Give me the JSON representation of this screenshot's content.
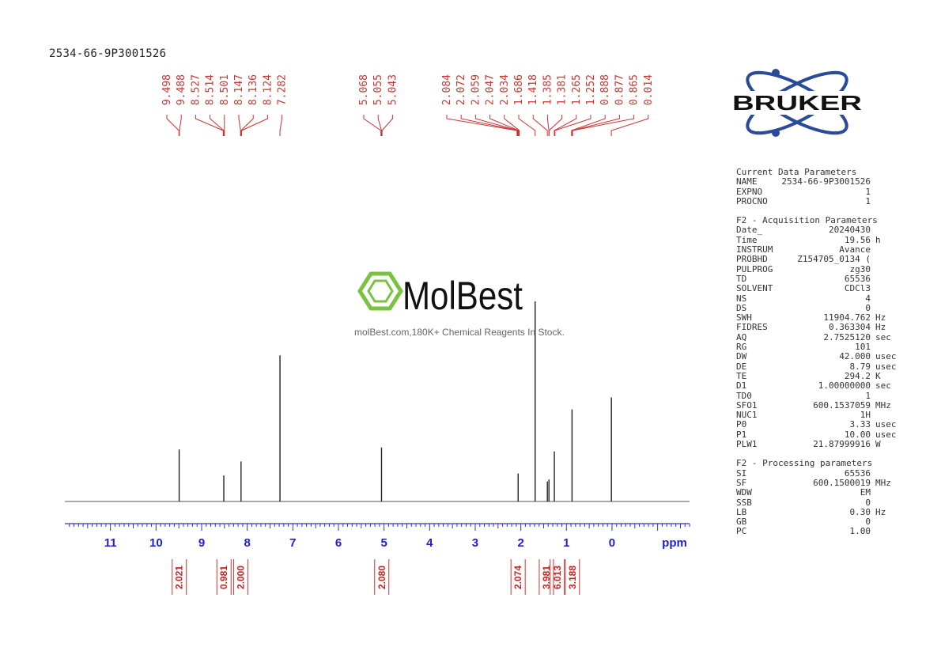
{
  "sample_title": "2534-66-9P3001526",
  "watermark": {
    "brand": "MolBest",
    "tagline": "molBest.com,180K+ Chemical Reagents In Stock."
  },
  "logo": {
    "text": "BRUKER"
  },
  "chart_data": {
    "type": "nmr-spectrum",
    "xlabel": "ppm",
    "xlim": [
      12.0,
      -1.7
    ],
    "x_ticks": [
      11,
      10,
      9,
      8,
      7,
      6,
      5,
      4,
      3,
      2,
      1,
      0
    ],
    "peak_labels": [
      "9.498",
      "9.488",
      "8.527",
      "8.514",
      "8.501",
      "8.147",
      "8.136",
      "8.124",
      "7.282",
      "5.068",
      "5.055",
      "5.043",
      "2.084",
      "2.072",
      "2.059",
      "2.047",
      "2.034",
      "1.686",
      "1.418",
      "1.385",
      "1.381",
      "1.265",
      "1.252",
      "0.888",
      "0.877",
      "0.865",
      "0.014"
    ],
    "peaks": [
      {
        "ppm": 9.493,
        "height": 0.26
      },
      {
        "ppm": 8.514,
        "height": 0.13
      },
      {
        "ppm": 8.136,
        "height": 0.2
      },
      {
        "ppm": 7.282,
        "height": 0.73
      },
      {
        "ppm": 5.055,
        "height": 0.27
      },
      {
        "ppm": 2.059,
        "height": 0.14
      },
      {
        "ppm": 1.686,
        "height": 1.0
      },
      {
        "ppm": 1.418,
        "height": 0.1
      },
      {
        "ppm": 1.383,
        "height": 0.11
      },
      {
        "ppm": 1.265,
        "height": 0.25
      },
      {
        "ppm": 0.877,
        "height": 0.46
      },
      {
        "ppm": 0.014,
        "height": 0.52
      }
    ],
    "integrals": [
      {
        "ppm": 9.49,
        "value": "2.021"
      },
      {
        "ppm": 8.51,
        "value": "0.981"
      },
      {
        "ppm": 8.14,
        "value": "2.000"
      },
      {
        "ppm": 5.05,
        "value": "2.080"
      },
      {
        "ppm": 2.06,
        "value": "2.074"
      },
      {
        "ppm": 1.44,
        "value": "3.981"
      },
      {
        "ppm": 1.2,
        "value": "6.013"
      },
      {
        "ppm": 0.87,
        "value": "3.188"
      }
    ]
  },
  "params": {
    "sections": [
      {
        "title": "Current Data Parameters",
        "rows": [
          {
            "k": "NAME",
            "v": "2534-66-9P3001526",
            "u": ""
          },
          {
            "k": "EXPNO",
            "v": "1",
            "u": ""
          },
          {
            "k": "PROCNO",
            "v": "1",
            "u": ""
          }
        ]
      },
      {
        "title": "F2 - Acquisition Parameters",
        "rows": [
          {
            "k": "Date_",
            "v": "20240430",
            "u": ""
          },
          {
            "k": "Time",
            "v": "19.56",
            "u": "h"
          },
          {
            "k": "INSTRUM",
            "v": "Avance",
            "u": ""
          },
          {
            "k": "PROBHD",
            "v": "Z154705_0134 (",
            "u": ""
          },
          {
            "k": "PULPROG",
            "v": "zg30",
            "u": ""
          },
          {
            "k": "TD",
            "v": "65536",
            "u": ""
          },
          {
            "k": "SOLVENT",
            "v": "CDCl3",
            "u": ""
          },
          {
            "k": "NS",
            "v": "4",
            "u": ""
          },
          {
            "k": "DS",
            "v": "0",
            "u": ""
          },
          {
            "k": "SWH",
            "v": "11904.762",
            "u": "Hz"
          },
          {
            "k": "FIDRES",
            "v": "0.363304",
            "u": "Hz"
          },
          {
            "k": "AQ",
            "v": "2.7525120",
            "u": "sec"
          },
          {
            "k": "RG",
            "v": "101",
            "u": ""
          },
          {
            "k": "DW",
            "v": "42.000",
            "u": "usec"
          },
          {
            "k": "DE",
            "v": "8.79",
            "u": "usec"
          },
          {
            "k": "TE",
            "v": "294.2",
            "u": "K"
          },
          {
            "k": "D1",
            "v": "1.00000000",
            "u": "sec"
          },
          {
            "k": "TD0",
            "v": "1",
            "u": ""
          },
          {
            "k": "SFO1",
            "v": "600.1537059",
            "u": "MHz"
          },
          {
            "k": "NUC1",
            "v": "1H",
            "u": ""
          },
          {
            "k": "P0",
            "v": "3.33",
            "u": "usec"
          },
          {
            "k": "P1",
            "v": "10.00",
            "u": "usec"
          },
          {
            "k": "PLW1",
            "v": "21.87999916",
            "u": "W"
          }
        ]
      },
      {
        "title": "F2 - Processing parameters",
        "rows": [
          {
            "k": "SI",
            "v": "65536",
            "u": ""
          },
          {
            "k": "SF",
            "v": "600.1500019",
            "u": "MHz"
          },
          {
            "k": "WDW",
            "v": "EM",
            "u": ""
          },
          {
            "k": "SSB",
            "v": "0",
            "u": ""
          },
          {
            "k": "LB",
            "v": "0.30",
            "u": "Hz"
          },
          {
            "k": "GB",
            "v": "0",
            "u": ""
          },
          {
            "k": "PC",
            "v": "1.00",
            "u": ""
          }
        ]
      }
    ]
  }
}
